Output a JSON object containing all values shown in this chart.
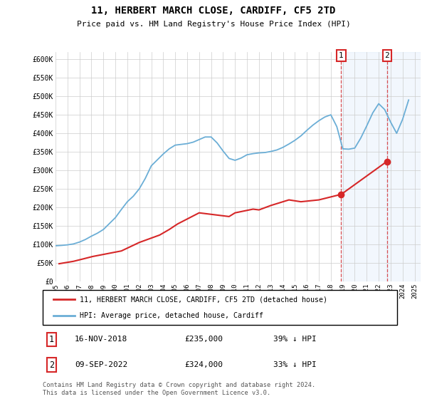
{
  "title": "11, HERBERT MARCH CLOSE, CARDIFF, CF5 2TD",
  "subtitle": "Price paid vs. HM Land Registry's House Price Index (HPI)",
  "ylim": [
    0,
    620000
  ],
  "xlim_start": 1995.0,
  "xlim_end": 2025.5,
  "yticks": [
    0,
    50000,
    100000,
    150000,
    200000,
    250000,
    300000,
    350000,
    400000,
    450000,
    500000,
    550000,
    600000
  ],
  "ytick_labels": [
    "£0",
    "£50K",
    "£100K",
    "£150K",
    "£200K",
    "£250K",
    "£300K",
    "£350K",
    "£400K",
    "£450K",
    "£500K",
    "£550K",
    "£600K"
  ],
  "xticks": [
    1995,
    1996,
    1997,
    1998,
    1999,
    2000,
    2001,
    2002,
    2003,
    2004,
    2005,
    2006,
    2007,
    2008,
    2009,
    2010,
    2011,
    2012,
    2013,
    2014,
    2015,
    2016,
    2017,
    2018,
    2019,
    2020,
    2021,
    2022,
    2023,
    2024,
    2025
  ],
  "hpi_color": "#6baed6",
  "price_color": "#d62728",
  "vline_color": "#d62728",
  "legend_label_price": "11, HERBERT MARCH CLOSE, CARDIFF, CF5 2TD (detached house)",
  "legend_label_hpi": "HPI: Average price, detached house, Cardiff",
  "annotation_1_label": "1",
  "annotation_1_date": "16-NOV-2018",
  "annotation_1_price": "£235,000",
  "annotation_1_hpi": "39% ↓ HPI",
  "annotation_2_label": "2",
  "annotation_2_date": "09-SEP-2022",
  "annotation_2_price": "£324,000",
  "annotation_2_hpi": "33% ↓ HPI",
  "footer": "Contains HM Land Registry data © Crown copyright and database right 2024.\nThis data is licensed under the Open Government Licence v3.0.",
  "hpi_x": [
    1995.0,
    1995.5,
    1996.0,
    1996.5,
    1997.0,
    1997.5,
    1998.0,
    1998.5,
    1999.0,
    1999.5,
    2000.0,
    2000.5,
    2001.0,
    2001.5,
    2002.0,
    2002.5,
    2003.0,
    2003.5,
    2004.0,
    2004.5,
    2005.0,
    2005.5,
    2006.0,
    2006.5,
    2007.0,
    2007.5,
    2008.0,
    2008.5,
    2009.0,
    2009.5,
    2010.0,
    2010.5,
    2011.0,
    2011.5,
    2012.0,
    2012.5,
    2013.0,
    2013.5,
    2014.0,
    2014.5,
    2015.0,
    2015.5,
    2016.0,
    2016.5,
    2017.0,
    2017.5,
    2018.0,
    2018.5,
    2019.0,
    2019.5,
    2020.0,
    2020.5,
    2021.0,
    2021.5,
    2022.0,
    2022.5,
    2023.0,
    2023.5,
    2024.0,
    2024.5
  ],
  "hpi_y": [
    96000,
    97000,
    98500,
    101000,
    106000,
    113000,
    122000,
    130000,
    140000,
    156000,
    172000,
    194000,
    215000,
    230000,
    250000,
    278000,
    312000,
    328000,
    344000,
    358000,
    368000,
    370000,
    372000,
    376000,
    383000,
    390000,
    390000,
    374000,
    352000,
    332000,
    327000,
    333000,
    342000,
    345000,
    347000,
    348000,
    351000,
    355000,
    362000,
    371000,
    381000,
    393000,
    408000,
    422000,
    434000,
    444000,
    450000,
    418000,
    358000,
    357000,
    360000,
    387000,
    420000,
    455000,
    480000,
    464000,
    430000,
    400000,
    438000,
    490000
  ],
  "price_x": [
    1995.3,
    1996.5,
    1997.25,
    1998.1,
    2000.5,
    2002.0,
    2003.7,
    2004.5,
    2005.2,
    2007.0,
    2009.5,
    2010.0,
    2011.5,
    2012.0,
    2013.0,
    2014.5,
    2015.5,
    2017.0,
    2018.87,
    2022.69
  ],
  "price_y": [
    47500,
    54000,
    60000,
    67000,
    82000,
    105000,
    125000,
    140000,
    155000,
    185000,
    175000,
    185000,
    195000,
    193000,
    205000,
    220000,
    215000,
    220000,
    235000,
    324000
  ],
  "sale_1_x": 2018.87,
  "sale_1_y": 235000,
  "sale_2_x": 2022.69,
  "sale_2_y": 324000,
  "vline_1_x": 2018.87,
  "vline_2_x": 2022.69,
  "highlight_end": 2025.5
}
